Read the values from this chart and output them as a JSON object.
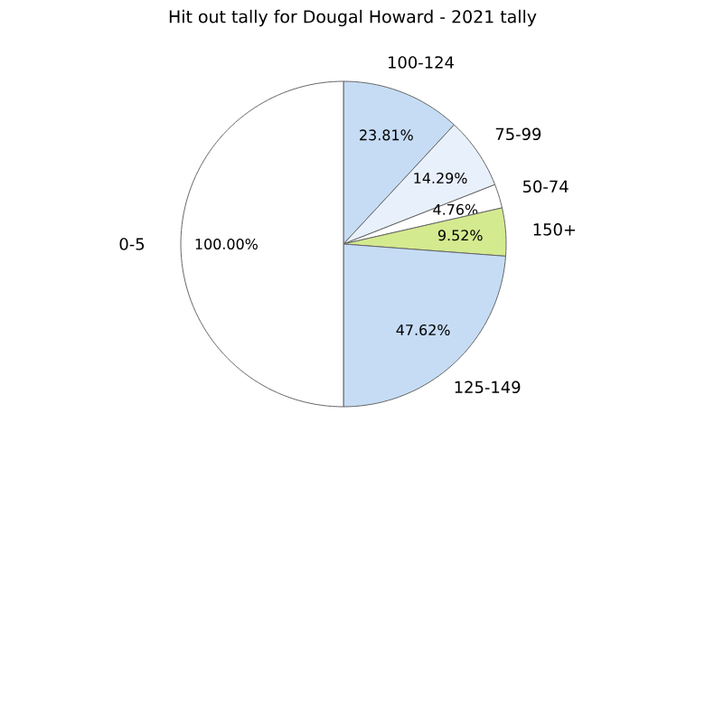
{
  "chart_data": {
    "type": "pie",
    "title": "Hit out tally for Dougal Howard - 2021 tally",
    "categories": [
      "100-124",
      "75-99",
      "50-74",
      "150+",
      "125-149",
      "0-5"
    ],
    "values": [
      23.81,
      14.29,
      4.76,
      9.52,
      47.62,
      100.0
    ],
    "value_labels": [
      "23.81%",
      "14.29%",
      "4.76%",
      "9.52%",
      "47.62%",
      "100.00%"
    ],
    "colors": [
      "#c6dcf5",
      "#e8f0fb",
      "#ffffff",
      "#d4ea8f",
      "#c6dcf5",
      "#ffffff"
    ]
  }
}
